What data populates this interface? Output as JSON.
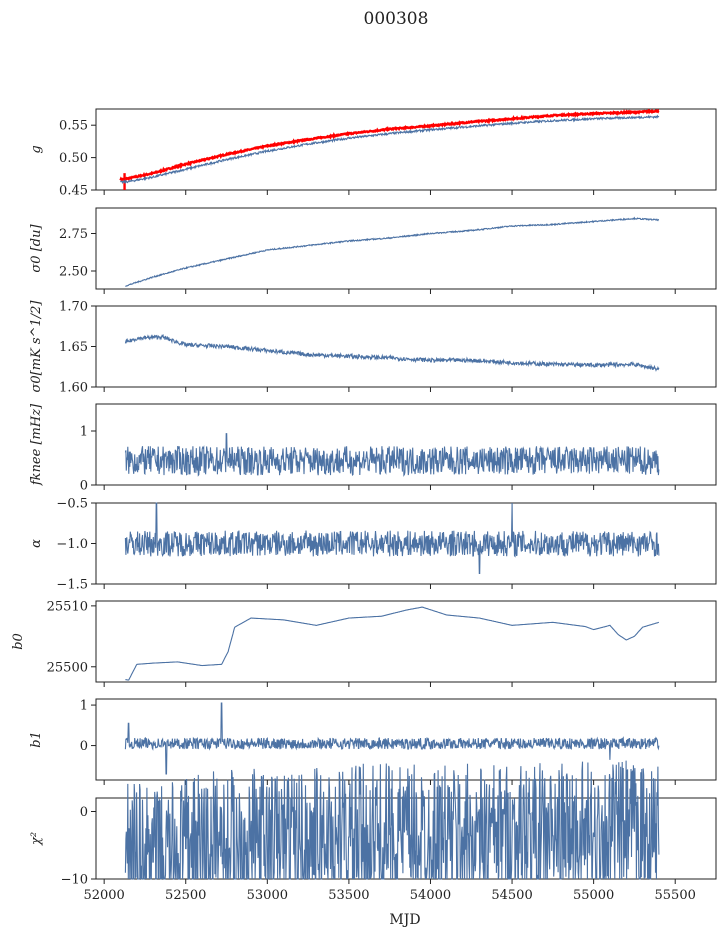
{
  "figure": {
    "title": "000308",
    "xlabel": "MJD"
  },
  "chart_data": [
    {
      "type": "line",
      "ylabel": "g",
      "xlim": [
        51950,
        55750
      ],
      "ylim": [
        0.45,
        0.575
      ],
      "yticks": [
        0.45,
        0.5,
        0.55
      ],
      "ytick_labels": [
        "0.45",
        "0.50",
        "0.55"
      ],
      "series": [
        {
          "color": "#ff0000",
          "x": [
            52100,
            52150,
            52300,
            52500,
            52750,
            53000,
            53250,
            53500,
            53750,
            54000,
            54250,
            54500,
            54750,
            55000,
            55250,
            55400
          ],
          "y": [
            0.466,
            0.468,
            0.476,
            0.49,
            0.505,
            0.518,
            0.528,
            0.537,
            0.544,
            0.549,
            0.555,
            0.56,
            0.565,
            0.568,
            0.57,
            0.572
          ]
        },
        {
          "color": "#4c72a4",
          "x": [
            52100,
            52150,
            52300,
            52500,
            52750,
            53000,
            53250,
            53500,
            53750,
            54000,
            54250,
            54500,
            54750,
            55000,
            55250,
            55400
          ],
          "y": [
            0.462,
            0.463,
            0.47,
            0.482,
            0.497,
            0.51,
            0.521,
            0.53,
            0.537,
            0.543,
            0.548,
            0.553,
            0.557,
            0.56,
            0.562,
            0.563
          ]
        }
      ]
    },
    {
      "type": "line",
      "ylabel": "σ0 [du]",
      "xlim": [
        51950,
        55750
      ],
      "ylim": [
        2.38,
        2.92
      ],
      "yticks": [
        2.5,
        2.75
      ],
      "ytick_labels": [
        "2.50",
        "2.75"
      ],
      "series": [
        {
          "color": "#4c72a4",
          "x": [
            52130,
            52300,
            52500,
            52750,
            53000,
            53250,
            53500,
            53750,
            54000,
            54250,
            54500,
            54750,
            55000,
            55250,
            55400
          ],
          "y": [
            2.4,
            2.46,
            2.52,
            2.58,
            2.64,
            2.67,
            2.7,
            2.72,
            2.75,
            2.77,
            2.8,
            2.81,
            2.83,
            2.85,
            2.84
          ]
        }
      ]
    },
    {
      "type": "line",
      "ylabel": "σ0[mK s^1/2]",
      "xlim": [
        51950,
        55750
      ],
      "ylim": [
        1.6,
        1.7
      ],
      "yticks": [
        1.6,
        1.65,
        1.7
      ],
      "ytick_labels": [
        "1.60",
        "1.65",
        "1.70"
      ],
      "series": [
        {
          "color": "#4c72a4",
          "x": [
            52130,
            52200,
            52350,
            52500,
            52750,
            53000,
            53250,
            53500,
            53750,
            54000,
            54250,
            54500,
            54750,
            55000,
            55250,
            55400
          ],
          "y": [
            1.655,
            1.66,
            1.662,
            1.652,
            1.65,
            1.645,
            1.64,
            1.638,
            1.636,
            1.633,
            1.633,
            1.63,
            1.628,
            1.627,
            1.628,
            1.622
          ]
        }
      ]
    },
    {
      "type": "line",
      "ylabel": "fknee [mHz]",
      "xlim": [
        51950,
        55750
      ],
      "ylim": [
        0,
        1.5
      ],
      "yticks": [
        0,
        1
      ],
      "ytick_labels": [
        "0",
        "1"
      ],
      "series": [
        {
          "color": "#4c72a4",
          "x": [
            52130,
            52700,
            52750,
            55400
          ],
          "y": [
            0.45,
            0.45,
            0.95,
            0.45
          ]
        }
      ]
    },
    {
      "type": "line",
      "ylabel": "α",
      "xlim": [
        51950,
        55750
      ],
      "ylim": [
        -1.5,
        -0.5
      ],
      "yticks": [
        -1.5,
        -1.0,
        -0.5
      ],
      "ytick_labels": [
        "−1.5",
        "−1.0",
        "−0.5"
      ],
      "series": [
        {
          "color": "#4c72a4",
          "x": [
            52130,
            52320,
            54300,
            54500,
            55400
          ],
          "y": [
            -1.0,
            -0.5,
            -1.37,
            -0.5,
            -1.0
          ]
        }
      ]
    },
    {
      "type": "line",
      "ylabel": "b0",
      "xlim": [
        51950,
        55750
      ],
      "ylim": [
        25497.5,
        25510.8
      ],
      "yticks": [
        25500,
        25510
      ],
      "ytick_labels": [
        "25500",
        "25510"
      ],
      "series": [
        {
          "color": "#4c72a4",
          "x": [
            52130,
            52150,
            52200,
            52300,
            52450,
            52600,
            52720,
            52760,
            52800,
            52900,
            53100,
            53300,
            53500,
            53700,
            53850,
            53950,
            54100,
            54300,
            54500,
            54750,
            54950,
            55000,
            55100,
            55150,
            55200,
            55250,
            55300,
            55400
          ],
          "y": [
            25497.9,
            25497.8,
            25500.4,
            25500.6,
            25500.8,
            25500.2,
            25500.4,
            25502.5,
            25506.5,
            25508.0,
            25507.7,
            25506.8,
            25508.0,
            25508.3,
            25509.3,
            25509.8,
            25508.5,
            25508.0,
            25506.8,
            25507.3,
            25506.6,
            25506.1,
            25506.8,
            25505.3,
            25504.4,
            25505.0,
            25506.5,
            25507.3
          ]
        }
      ]
    },
    {
      "type": "line",
      "ylabel": "b1",
      "xlim": [
        51950,
        55750
      ],
      "ylim": [
        -0.85,
        1.15
      ],
      "yticks": [
        0,
        1
      ],
      "ytick_labels": [
        "0",
        "1"
      ],
      "series": [
        {
          "color": "#4c72a4",
          "x": [
            52130,
            52150,
            52380,
            52400,
            52720,
            52730,
            55100,
            55400
          ],
          "y": [
            0.05,
            0.55,
            -0.7,
            0.0,
            1.05,
            0.1,
            -0.35,
            0.0
          ]
        }
      ]
    },
    {
      "type": "line",
      "ylabel": "χ²",
      "xlim": [
        51950,
        55750
      ],
      "ylim": [
        -10,
        2
      ],
      "yticks": [
        -10,
        0
      ],
      "ytick_labels": [
        "−10",
        "0"
      ],
      "series": [
        {
          "color": "#4c72a4",
          "x": [
            52130,
            52300,
            52500,
            52750,
            53000,
            53250,
            53500,
            53750,
            54000,
            54250,
            54500,
            54750,
            55000,
            55250,
            55400
          ],
          "y": [
            -5.5,
            -7.5,
            -5.5,
            -4.0,
            -4.5,
            -4.2,
            -3.8,
            -3.5,
            -3.8,
            -3.6,
            -3.4,
            -3.6,
            -3.2,
            -3.0,
            -3.8
          ]
        }
      ]
    }
  ],
  "xticks": [
    52000,
    52500,
    53000,
    53500,
    54000,
    54500,
    55000,
    55500
  ],
  "xtick_labels": [
    "52000",
    "52500",
    "53000",
    "53500",
    "54000",
    "54500",
    "55000",
    "55500"
  ]
}
